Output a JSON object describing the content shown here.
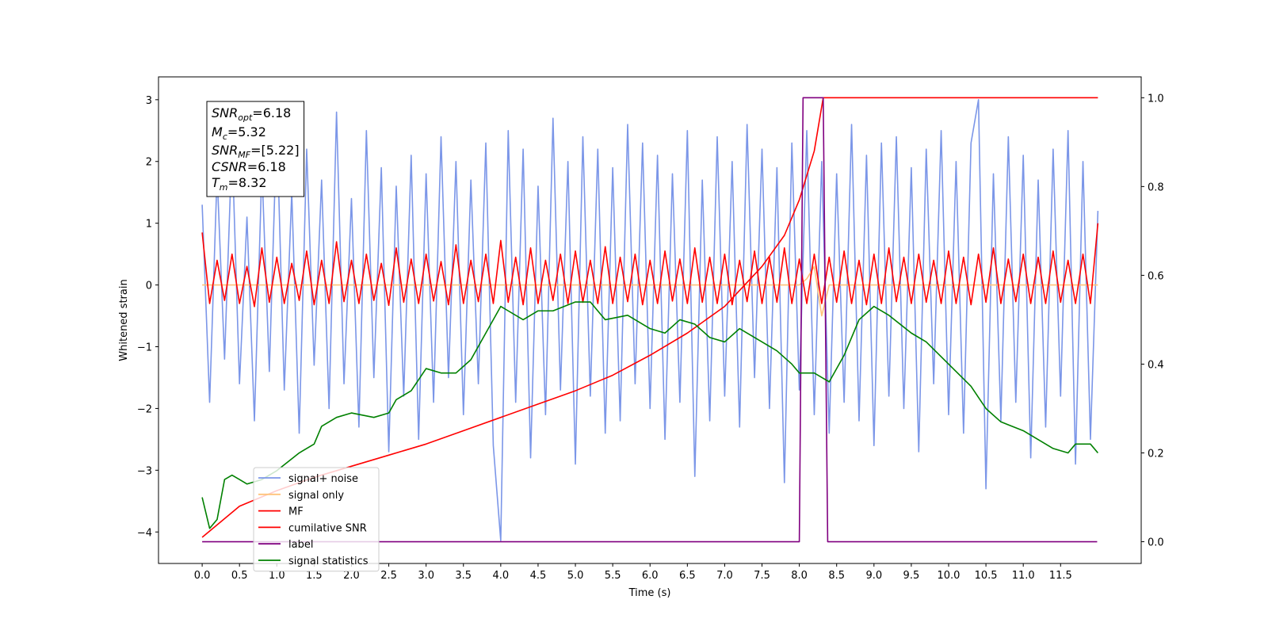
{
  "chart_data": {
    "type": "line",
    "xlabel": "Time (s)",
    "ylabel": "Whitened strain",
    "xlim": [
      -0.585,
      12.58
    ],
    "ylim": [
      -4.51,
      3.37
    ],
    "y2lim": [
      -0.049,
      1.047
    ],
    "xticks": [
      {
        "value": 0,
        "label": "0.0"
      },
      {
        "value": 0.5,
        "label": "0.5"
      },
      {
        "value": 1,
        "label": "1.0"
      },
      {
        "value": 1.5,
        "label": "1.5"
      },
      {
        "value": 2,
        "label": "2.0"
      },
      {
        "value": 2.5,
        "label": "2.5"
      },
      {
        "value": 3,
        "label": "3.0"
      },
      {
        "value": 3.5,
        "label": "3.5"
      },
      {
        "value": 4,
        "label": "4.0"
      },
      {
        "value": 4.5,
        "label": "4.5"
      },
      {
        "value": 5,
        "label": "5.0"
      },
      {
        "value": 5.5,
        "label": "5.5"
      },
      {
        "value": 6,
        "label": "6.0"
      },
      {
        "value": 6.5,
        "label": "6.5"
      },
      {
        "value": 7,
        "label": "7.0"
      },
      {
        "value": 7.5,
        "label": "7.5"
      },
      {
        "value": 8,
        "label": "8.0"
      },
      {
        "value": 8.5,
        "label": "8.5"
      },
      {
        "value": 9,
        "label": "9.0"
      },
      {
        "value": 9.5,
        "label": "9.5"
      },
      {
        "value": 10,
        "label": "10.0"
      },
      {
        "value": 10.5,
        "label": "10.5"
      },
      {
        "value": 11,
        "label": "11.0"
      },
      {
        "value": 11.5,
        "label": "11.5"
      }
    ],
    "yticks": [
      {
        "value": -4,
        "label": "−4"
      },
      {
        "value": -3,
        "label": "−3"
      },
      {
        "value": -2,
        "label": "−2"
      },
      {
        "value": -1,
        "label": "−1"
      },
      0,
      1,
      2,
      3
    ],
    "y2ticks": [
      {
        "value": 0,
        "label": "0.0"
      },
      {
        "value": 0.2,
        "label": "0.2"
      },
      {
        "value": 0.4,
        "label": "0.4"
      },
      {
        "value": 0.6,
        "label": "0.6"
      },
      {
        "value": 0.8,
        "label": "0.8"
      },
      {
        "value": 1,
        "label": "1.0"
      }
    ],
    "legend": "lower left",
    "annotation": [
      {
        "base": "SNR",
        "sub": "opt",
        "text": "=6.18"
      },
      {
        "base": "M",
        "sub": "c",
        "text": "=5.32"
      },
      {
        "base": "SNR",
        "sub": "MF",
        "text": "=[5.22]"
      },
      {
        "base": "CSNR",
        "text": "=6.18"
      },
      {
        "base": "T",
        "sub": "m",
        "text": "=8.32"
      }
    ],
    "x": [
      0,
      0.1,
      0.2,
      0.3,
      0.4,
      0.5,
      0.6,
      0.7,
      0.8,
      0.9,
      1,
      1.1,
      1.2,
      1.3,
      1.4,
      1.5,
      1.6,
      1.7,
      1.8,
      1.9,
      2,
      2.1,
      2.2,
      2.3,
      2.4,
      2.5,
      2.6,
      2.7,
      2.8,
      2.9,
      3,
      3.1,
      3.2,
      3.3,
      3.4,
      3.5,
      3.6,
      3.7,
      3.8,
      3.9,
      4,
      4.1,
      4.2,
      4.3,
      4.4,
      4.5,
      4.6,
      4.7,
      4.8,
      4.9,
      5,
      5.1,
      5.2,
      5.3,
      5.4,
      5.5,
      5.6,
      5.7,
      5.8,
      5.9,
      6,
      6.1,
      6.2,
      6.3,
      6.4,
      6.5,
      6.6,
      6.7,
      6.8,
      6.9,
      7,
      7.1,
      7.2,
      7.3,
      7.4,
      7.5,
      7.6,
      7.7,
      7.8,
      7.9,
      8,
      8.1,
      8.2,
      8.3,
      8.4,
      8.5,
      8.6,
      8.7,
      8.8,
      8.9,
      9,
      9.1,
      9.2,
      9.3,
      9.4,
      9.5,
      9.6,
      9.7,
      9.8,
      9.9,
      10,
      10.1,
      10.2,
      10.3,
      10.4,
      10.5,
      10.6,
      10.7,
      10.8,
      10.9,
      11,
      11.1,
      11.2,
      11.3,
      11.4,
      11.5,
      11.6,
      11.7,
      11.8,
      11.9,
      12
    ],
    "series": [
      {
        "name": "signal+ noise",
        "color": "#7b96e8",
        "values": [
          1.3,
          -1.9,
          1.8,
          -1.2,
          2.3,
          -1.6,
          1.1,
          -2.2,
          1.9,
          -1.4,
          2.6,
          -1.7,
          1.5,
          -2.4,
          2.2,
          -1.3,
          1.7,
          -2.0,
          2.8,
          -1.6,
          1.4,
          -2.3,
          2.5,
          -1.5,
          1.9,
          -2.7,
          1.6,
          -1.8,
          2.1,
          -2.5,
          1.8,
          -1.9,
          2.4,
          -1.5,
          2.0,
          -2.1,
          1.7,
          -1.6,
          2.3,
          -2.6,
          -4.14,
          2.5,
          -1.9,
          2.2,
          -2.8,
          1.6,
          -2.1,
          2.7,
          -1.7,
          2.0,
          -2.9,
          2.4,
          -1.8,
          2.2,
          -2.4,
          1.9,
          -2.2,
          2.6,
          -1.6,
          2.3,
          -2.0,
          2.1,
          -2.5,
          1.8,
          -1.9,
          2.5,
          -3.1,
          1.7,
          -2.2,
          2.4,
          -1.8,
          2.0,
          -2.3,
          2.6,
          -1.5,
          2.2,
          -2.0,
          1.9,
          -3.2,
          2.3,
          -1.7,
          2.5,
          -2.1,
          2.0,
          -2.4,
          1.8,
          -1.9,
          2.6,
          -2.2,
          2.1,
          -2.6,
          2.3,
          -1.8,
          2.4,
          -2.0,
          1.9,
          -2.7,
          2.2,
          -1.6,
          2.5,
          -2.1,
          2.0,
          -2.4,
          2.3,
          3.0,
          -3.3,
          1.8,
          -2.2,
          2.4,
          -1.9,
          2.1,
          -2.8,
          1.7,
          -2.3,
          2.2,
          -1.8,
          2.5,
          -2.9,
          2.0,
          -2.5,
          1.2
        ]
      },
      {
        "name": "signal only",
        "color": "#ffc37a",
        "values": [
          0,
          0,
          0,
          0,
          0,
          0,
          0,
          0,
          0,
          0,
          0,
          0,
          0,
          0,
          0,
          0,
          0,
          0,
          0,
          0,
          0,
          0,
          0,
          0,
          0,
          0,
          0,
          0,
          0,
          0,
          0,
          0,
          0,
          0,
          0,
          0,
          0,
          0,
          0,
          0,
          0,
          0,
          0,
          0,
          0,
          0,
          0,
          0,
          0,
          0,
          0,
          0,
          0,
          0,
          0,
          0,
          0,
          0,
          0,
          0,
          0,
          0,
          0,
          0,
          0,
          0,
          0,
          0,
          0,
          0,
          0,
          0,
          0,
          0,
          0,
          0,
          0,
          0,
          0,
          0,
          0,
          0.1,
          0.3,
          -0.5,
          0,
          0,
          0,
          0,
          0,
          0,
          0,
          0,
          0,
          0,
          0,
          0,
          0,
          0,
          0,
          0,
          0,
          0,
          0,
          0,
          0,
          0,
          0,
          0,
          0,
          0,
          0,
          0,
          0,
          0,
          0,
          0,
          0,
          0,
          0,
          0,
          0
        ]
      },
      {
        "name": "MF",
        "color": "#ff0000",
        "values": [
          0.85,
          -0.3,
          0.4,
          -0.25,
          0.5,
          -0.3,
          0.3,
          -0.35,
          0.6,
          -0.28,
          0.45,
          -0.3,
          0.35,
          -0.25,
          0.55,
          -0.32,
          0.4,
          -0.3,
          0.7,
          -0.27,
          0.4,
          -0.3,
          0.5,
          -0.25,
          0.35,
          -0.33,
          0.6,
          -0.28,
          0.42,
          -0.3,
          0.5,
          -0.26,
          0.38,
          -0.32,
          0.65,
          -0.3,
          0.4,
          -0.27,
          0.5,
          -0.3,
          0.72,
          -0.28,
          0.45,
          -0.32,
          0.6,
          -0.3,
          0.4,
          -0.25,
          0.5,
          -0.3,
          0.55,
          -0.28,
          0.4,
          -0.3,
          0.62,
          -0.3,
          0.45,
          -0.27,
          0.5,
          -0.32,
          0.4,
          -0.3,
          0.55,
          -0.26,
          0.42,
          -0.3,
          0.6,
          -0.28,
          0.45,
          -0.3,
          0.5,
          -0.32,
          0.4,
          -0.27,
          0.55,
          -0.3,
          0.45,
          -0.28,
          0.6,
          -0.3,
          0.42,
          -0.3,
          0.5,
          -0.3,
          0.45,
          -0.28,
          0.55,
          -0.3,
          0.4,
          -0.32,
          0.5,
          -0.3,
          0.6,
          -0.27,
          0.45,
          -0.3,
          0.5,
          -0.28,
          0.4,
          -0.3,
          0.55,
          -0.3,
          0.45,
          -0.32,
          0.5,
          -0.28,
          0.6,
          -0.3,
          0.42,
          -0.27,
          0.5,
          -0.3,
          0.45,
          -0.3,
          0.55,
          -0.28,
          0.4,
          -0.3,
          0.5,
          -0.3,
          1.0
        ]
      },
      {
        "name": "cumilative SNR",
        "color": "#ff0000",
        "axis": "y2",
        "x": [
          0,
          0.5,
          1,
          1.5,
          2,
          2.5,
          3,
          3.5,
          4,
          4.5,
          5,
          5.5,
          6,
          6.5,
          7,
          7.5,
          7.8,
          8,
          8.2,
          8.32,
          12
        ],
        "values": [
          0.01,
          0.08,
          0.115,
          0.145,
          0.17,
          0.195,
          0.22,
          0.25,
          0.28,
          0.31,
          0.34,
          0.375,
          0.42,
          0.47,
          0.53,
          0.62,
          0.69,
          0.77,
          0.88,
          1.0,
          1.0
        ]
      },
      {
        "name": "label",
        "color": "#800080",
        "axis": "y2",
        "x": [
          0,
          8.0,
          8.05,
          8.32,
          8.38,
          11.99
        ],
        "values": [
          0,
          0,
          1,
          1,
          0,
          0
        ]
      },
      {
        "name": "signal statistics",
        "color": "#008000",
        "axis": "y2",
        "x": [
          0,
          0.1,
          0.2,
          0.3,
          0.4,
          0.5,
          0.6,
          0.8,
          1.0,
          1.3,
          1.5,
          1.6,
          1.8,
          2.0,
          2.3,
          2.5,
          2.6,
          2.8,
          3.0,
          3.2,
          3.4,
          3.6,
          3.8,
          4.0,
          4.3,
          4.5,
          4.7,
          5.0,
          5.2,
          5.4,
          5.7,
          6.0,
          6.2,
          6.4,
          6.6,
          6.8,
          7.0,
          7.2,
          7.5,
          7.7,
          7.9,
          8.0,
          8.2,
          8.4,
          8.6,
          8.8,
          9.0,
          9.2,
          9.5,
          9.7,
          10.0,
          10.3,
          10.5,
          10.7,
          11.0,
          11.2,
          11.4,
          11.6,
          11.7,
          11.9,
          12.0
        ],
        "values": [
          0.1,
          0.03,
          0.05,
          0.14,
          0.15,
          0.14,
          0.13,
          0.14,
          0.16,
          0.2,
          0.22,
          0.26,
          0.28,
          0.29,
          0.28,
          0.29,
          0.32,
          0.34,
          0.39,
          0.38,
          0.38,
          0.41,
          0.47,
          0.53,
          0.5,
          0.52,
          0.52,
          0.54,
          0.54,
          0.5,
          0.51,
          0.48,
          0.47,
          0.5,
          0.49,
          0.46,
          0.45,
          0.48,
          0.45,
          0.43,
          0.4,
          0.38,
          0.38,
          0.36,
          0.42,
          0.5,
          0.53,
          0.51,
          0.47,
          0.45,
          0.4,
          0.35,
          0.3,
          0.27,
          0.25,
          0.23,
          0.21,
          0.2,
          0.22,
          0.22,
          0.2
        ]
      }
    ]
  }
}
